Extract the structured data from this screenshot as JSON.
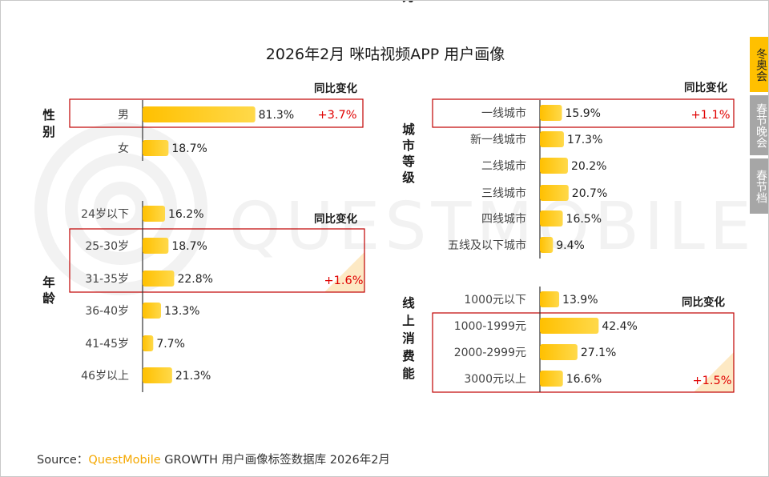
{
  "title": "2026年2月 咪咕视频APP 用户画像",
  "watermark": "QUESTMOBILE",
  "tabs": [
    "冬奥会",
    "春节晚会",
    "春节档"
  ],
  "source": {
    "prefix": "Source：",
    "brand": "QuestMobile",
    "rest": "GROWTH 用户画像标签数据库 2026年2月"
  },
  "colors": {
    "bar_start": "#ffc000",
    "bar_end": "#ffd94a",
    "highlight": "#c00000",
    "change": "#e00000",
    "tab_active": "#ffc000",
    "tab_inactive": "#a6a6a6"
  },
  "chart_data": [
    {
      "type": "bar",
      "orientation": "horizontal",
      "group": "性别",
      "categories": [
        "男",
        "女"
      ],
      "values": [
        81.3,
        18.7
      ],
      "value_labels": [
        "81.3%",
        "18.7%"
      ],
      "change_header": "同比变化",
      "changes": [
        {
          "category": "男",
          "text": "+3.7%"
        }
      ]
    },
    {
      "type": "bar",
      "orientation": "horizontal",
      "group": "年龄",
      "categories": [
        "24岁以下",
        "25-30岁",
        "31-35岁",
        "36-40岁",
        "41-45岁",
        "46岁以上"
      ],
      "values": [
        16.2,
        18.7,
        22.8,
        13.3,
        7.7,
        21.3
      ],
      "value_labels": [
        "16.2%",
        "18.7%",
        "22.8%",
        "13.3%",
        "7.7%",
        "21.3%"
      ],
      "change_header": "同比变化",
      "changes": [
        {
          "categories": [
            "25-30岁",
            "31-35岁"
          ],
          "text": "+1.6%"
        }
      ]
    },
    {
      "type": "bar",
      "orientation": "horizontal",
      "group": "城市等级",
      "categories": [
        "一线城市",
        "新一线城市",
        "二线城市",
        "三线城市",
        "四线城市",
        "五线及以下城市"
      ],
      "values": [
        15.9,
        17.3,
        20.2,
        20.7,
        16.5,
        9.4
      ],
      "value_labels": [
        "15.9%",
        "17.3%",
        "20.2%",
        "20.7%",
        "16.5%",
        "9.4%"
      ],
      "change_header": "同比变化",
      "changes": [
        {
          "category": "一线城市",
          "text": "+1.1%"
        }
      ]
    },
    {
      "type": "bar",
      "orientation": "horizontal",
      "group": "线上消费能力",
      "categories": [
        "1000元以下",
        "1000-1999元",
        "2000-2999元",
        "3000元以上"
      ],
      "values": [
        13.9,
        42.4,
        27.1,
        16.6
      ],
      "value_labels": [
        "13.9%",
        "42.4%",
        "27.1%",
        "16.6%"
      ],
      "change_header": "同比变化",
      "changes": [
        {
          "categories": [
            "1000-1999元",
            "2000-2999元",
            "3000元以上"
          ],
          "text": "+1.5%"
        }
      ]
    }
  ]
}
